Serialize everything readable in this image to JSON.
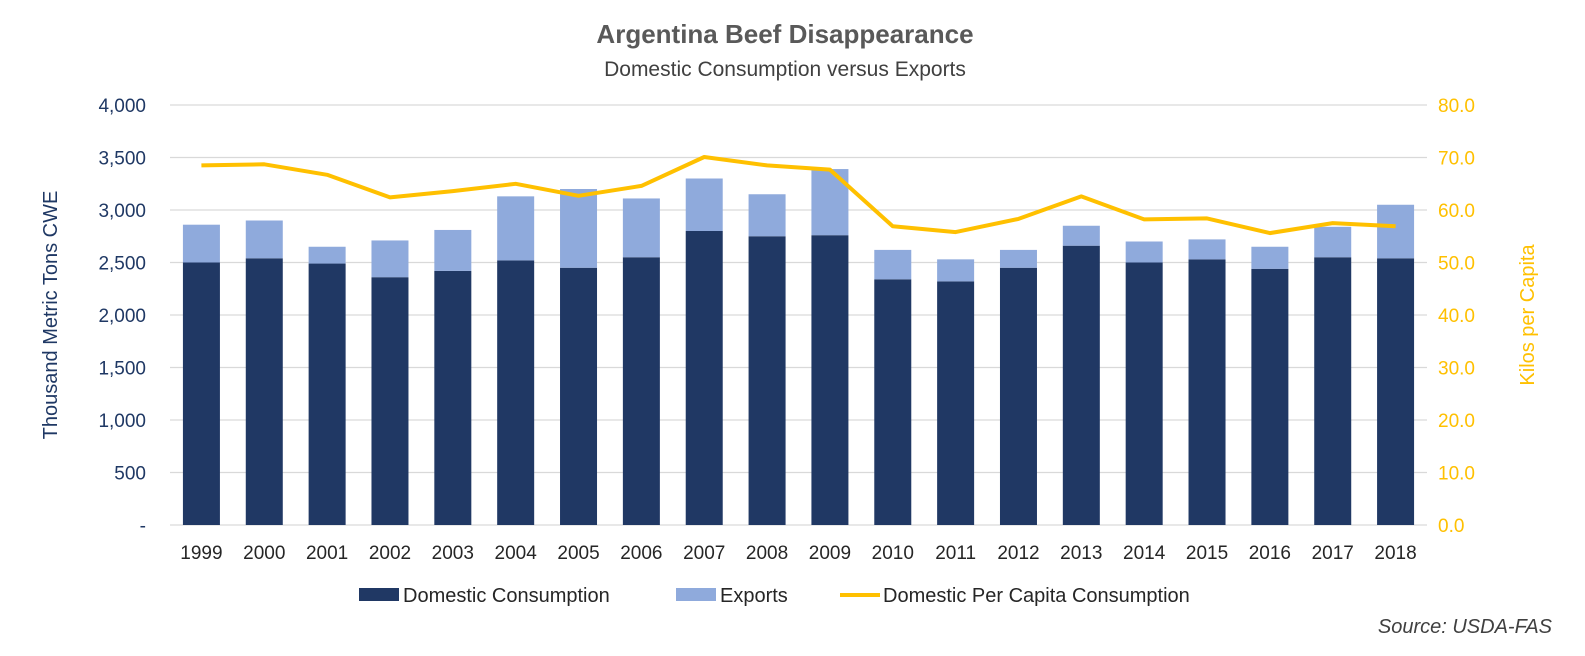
{
  "chart_data": {
    "type": "bar",
    "stacked": true,
    "title": "Argentina Beef Disappearance",
    "subtitle": "Domestic Consumption versus Exports",
    "ylabel_left": "Thousand Metric Tons CWE",
    "ylabel_right": "Kilos per Capita",
    "source": "Source: USDA-FAS",
    "categories": [
      "1999",
      "2000",
      "2001",
      "2002",
      "2003",
      "2004",
      "2005",
      "2006",
      "2007",
      "2008",
      "2009",
      "2010",
      "2011",
      "2012",
      "2013",
      "2014",
      "2015",
      "2016",
      "2017",
      "2018"
    ],
    "ylim_left": [
      0,
      4000
    ],
    "ylim_right": [
      0,
      80
    ],
    "yticks_left": [
      "-",
      "500",
      "1,000",
      "1,500",
      "2,000",
      "2,500",
      "3,000",
      "3,500",
      "4,000"
    ],
    "yticks_right": [
      "0.0",
      "10.0",
      "20.0",
      "30.0",
      "40.0",
      "50.0",
      "60.0",
      "70.0",
      "80.0"
    ],
    "grid": true,
    "legend_position": "bottom",
    "series": [
      {
        "name": "Domestic Consumption",
        "kind": "bar",
        "axis": "left",
        "color": "#203864",
        "values": [
          2500,
          2540,
          2490,
          2360,
          2420,
          2520,
          2450,
          2550,
          2800,
          2750,
          2760,
          2340,
          2320,
          2450,
          2660,
          2500,
          2530,
          2440,
          2550,
          2540
        ]
      },
      {
        "name": "Exports",
        "kind": "bar",
        "axis": "left",
        "color": "#8faadc",
        "values": [
          360,
          360,
          160,
          350,
          390,
          610,
          750,
          560,
          500,
          400,
          630,
          280,
          210,
          170,
          190,
          200,
          190,
          210,
          290,
          510
        ]
      },
      {
        "name": "Domestic Per Capita Consumption",
        "kind": "line",
        "axis": "right",
        "color": "#ffc000",
        "values": [
          68.5,
          68.7,
          66.7,
          62.4,
          63.6,
          65.0,
          62.7,
          64.6,
          70.1,
          68.5,
          67.7,
          56.9,
          55.8,
          58.3,
          62.6,
          58.2,
          58.4,
          55.6,
          57.5,
          56.9
        ]
      }
    ]
  }
}
